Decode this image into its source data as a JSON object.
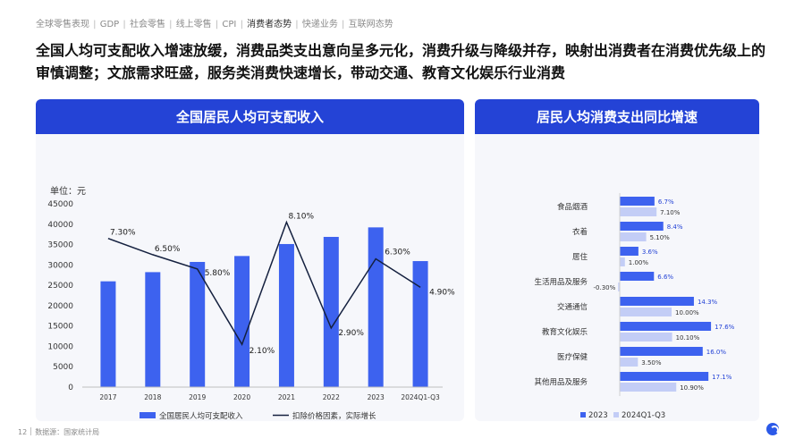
{
  "nav": {
    "items": [
      {
        "label": "全球零售表现",
        "active": false
      },
      {
        "label": "GDP",
        "active": false
      },
      {
        "label": "社会零售",
        "active": false
      },
      {
        "label": "线上零售",
        "active": false
      },
      {
        "label": "CPI",
        "active": false
      },
      {
        "label": "消费者态势",
        "active": true
      },
      {
        "label": "快递业务",
        "active": false
      },
      {
        "label": "互联网态势",
        "active": false
      }
    ]
  },
  "headline": "全国人均可支配收入增速放缓，消费品类支出意向呈多元化，消费升级与降级并存，映射出消费者在消费优先级上的审慎调整；文旅需求旺盛，服务类消费快速增长，带动交通、教育文化娱乐行业消费",
  "chart_data": [
    {
      "type": "bar",
      "title": "全国居民人均可支配收入",
      "unit_label": "单位：元",
      "categories": [
        "2017",
        "2018",
        "2019",
        "2020",
        "2021",
        "2022",
        "2023",
        "2024Q1-Q3"
      ],
      "series": [
        {
          "name": "全国居民人均可支配收入",
          "type": "bar",
          "values": [
            25974,
            28228,
            30733,
            32189,
            35128,
            36883,
            39218,
            30941
          ]
        },
        {
          "name": "扣除价格因素，实际增长",
          "type": "line",
          "values": [
            7.3,
            6.5,
            5.8,
            2.1,
            8.1,
            2.9,
            6.3,
            4.9
          ],
          "labels": [
            "7.30%",
            "6.50%",
            "5.80%",
            "2.10%",
            "8.10%",
            "2.90%",
            "6.30%",
            "4.90%"
          ]
        }
      ],
      "ylim": [
        0,
        45000
      ],
      "yticks": [
        0,
        5000,
        10000,
        15000,
        20000,
        25000,
        30000,
        35000,
        40000,
        45000
      ],
      "y2lim": [
        0,
        9
      ],
      "grid": false,
      "legend": "bottom",
      "colors": {
        "bar": "#3d62ef",
        "line": "#14203f"
      }
    },
    {
      "type": "bar",
      "orientation": "horizontal",
      "title": "居民人均消费支出同比增速",
      "categories": [
        "食品烟酒",
        "衣着",
        "居住",
        "生活用品及服务",
        "交通通信",
        "教育文化娱乐",
        "医疗保健",
        "其他用品及服务"
      ],
      "series": [
        {
          "name": "2023",
          "values": [
            6.7,
            8.4,
            3.6,
            6.6,
            14.3,
            17.6,
            16.0,
            17.1
          ],
          "labels": [
            "6.7%",
            "8.4%",
            "3.6%",
            "6.6%",
            "14.3%",
            "17.6%",
            "16.0%",
            "17.1%"
          ]
        },
        {
          "name": "2024Q1-Q3",
          "values": [
            7.1,
            5.1,
            1.0,
            -0.3,
            10.0,
            10.1,
            3.5,
            10.9
          ],
          "labels": [
            "7.10%",
            "5.10%",
            "1.00%",
            "-0.30%",
            "10.00%",
            "10.10%",
            "3.50%",
            "10.90%"
          ]
        }
      ],
      "xlim": [
        -0.5,
        18
      ],
      "grid": false,
      "legend": "bottom-left",
      "colors": {
        "2023": "#3d62ef",
        "2024Q1-Q3": "#c3cdf6"
      }
    }
  ],
  "footer": {
    "page": "12",
    "source": "数据源：国家统计局"
  }
}
